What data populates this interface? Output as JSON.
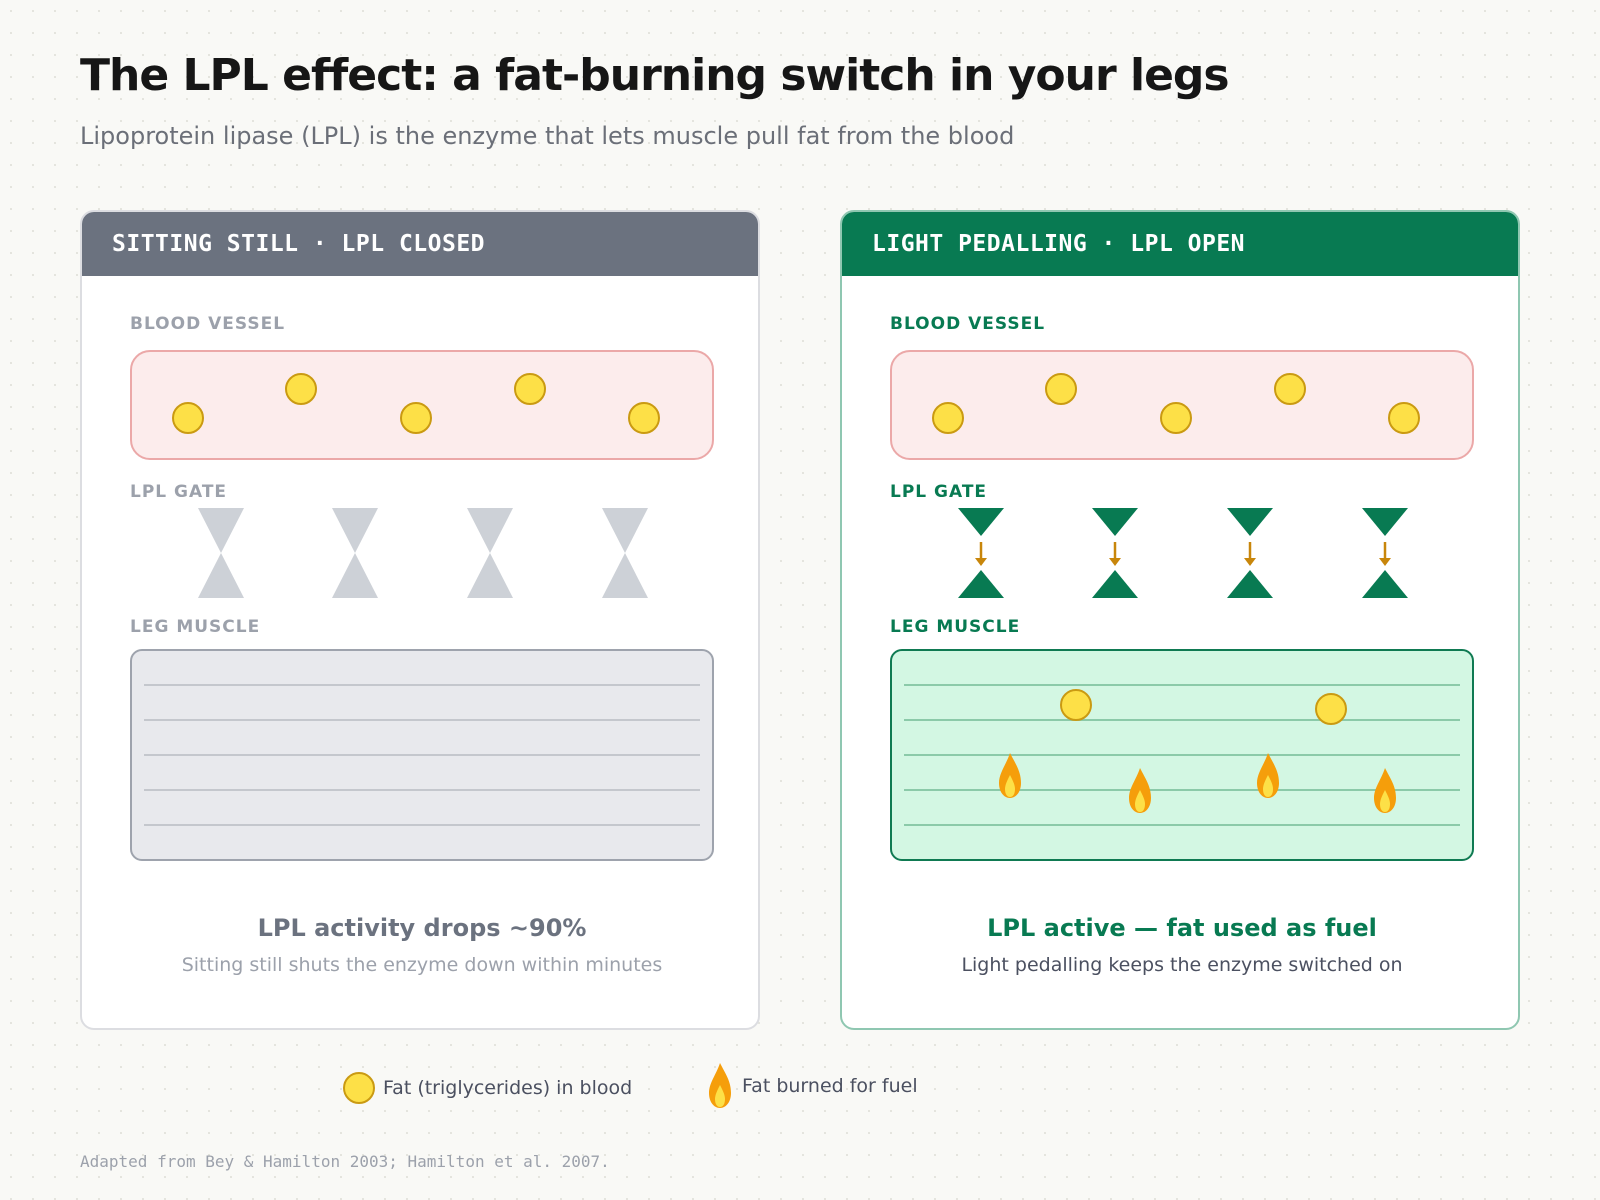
{
  "title": "The LPL effect: a fat-burning switch in your legs",
  "subtitle": "Lipoprotein lipase (LPL) is the enzyme that lets muscle pull fat from the blood",
  "panels": [
    {
      "header": "SITTING STILL · LPL CLOSED",
      "vessel_label": "BLOOD VESSEL",
      "gate_label": "LPL GATE",
      "muscle_label": "LEG MUSCLE",
      "state": "closed",
      "caption_main": "LPL activity drops ~90%",
      "caption_sub": "Sitting still shuts the enzyme down within minutes"
    },
    {
      "header": "LIGHT PEDALLING · LPL OPEN",
      "vessel_label": "BLOOD VESSEL",
      "gate_label": "LPL GATE",
      "muscle_label": "LEG MUSCLE",
      "state": "open",
      "caption_main": "LPL active — fat used as fuel",
      "caption_sub": "Light pedalling keeps the enzyme switched on"
    }
  ],
  "legend": {
    "fat_label": "Fat (triglycerides) in blood",
    "burn_label": "Fat burned for fuel"
  },
  "source": "Adapted from Bey & Hamilton 2003; Hamilton et al. 2007.",
  "icons": {
    "fat": "fat-droplet-icon",
    "burn": "flame-icon",
    "gate": "lpl-gate-icon",
    "arrow": "arrow-down-icon"
  },
  "colors": {
    "closed_header": "#6b727f",
    "open_header": "#087a52",
    "gate_closed": "#cdd1d7",
    "gate_open": "#087a52",
    "fat_fill": "#fde047",
    "flame": "#f59e0b",
    "vessel_fill": "#fcecec",
    "muscle_open_fill": "#d3f7e3"
  }
}
